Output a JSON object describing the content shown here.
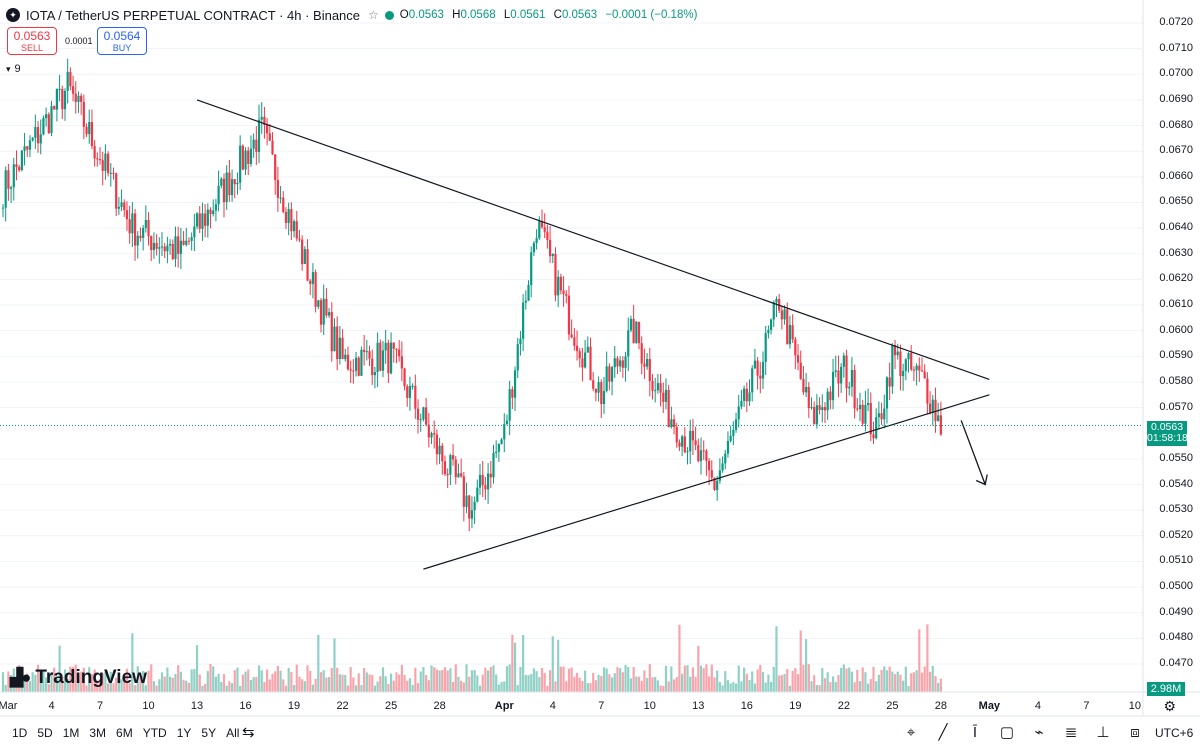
{
  "header": {
    "symbol_icon": "iota-coin-icon",
    "title": "IOTA / TetherUS PERPETUAL CONTRACT · 4h · Binance",
    "ohlc": {
      "o_label": "O",
      "o": "0.0563",
      "h_label": "H",
      "h": "0.0568",
      "l_label": "L",
      "l": "0.0561",
      "c_label": "C",
      "c": "0.0563",
      "change": "−0.0001 (−0.18%)"
    }
  },
  "trade": {
    "sell_price": "0.0563",
    "sell_label": "SELL",
    "spread": "0.0001",
    "buy_price": "0.0564",
    "buy_label": "BUY"
  },
  "indicators": {
    "count": "9"
  },
  "yaxis": {
    "labels": [
      "0.0720",
      "0.0710",
      "0.0700",
      "0.0690",
      "0.0680",
      "0.0670",
      "0.0660",
      "0.0650",
      "0.0640",
      "0.0630",
      "0.0620",
      "0.0610",
      "0.0600",
      "0.0590",
      "0.0580",
      "0.0570",
      "0.0550",
      "0.0540",
      "0.0530",
      "0.0520",
      "0.0510",
      "0.0500",
      "0.0490",
      "0.0480",
      "0.0470"
    ]
  },
  "xaxis": {
    "labels": [
      "Mar",
      "4",
      "7",
      "10",
      "13",
      "16",
      "19",
      "22",
      "25",
      "28",
      "Apr",
      "4",
      "7",
      "10",
      "13",
      "16",
      "19",
      "22",
      "25",
      "28",
      "May",
      "4",
      "7",
      "10"
    ]
  },
  "last_price": {
    "price": "0.0563",
    "countdown": "01:58:18"
  },
  "volume": {
    "last": "2.98M"
  },
  "logo": {
    "text": "TradingView"
  },
  "timeframes": [
    "1D",
    "5D",
    "1M",
    "3M",
    "6M",
    "YTD",
    "1Y",
    "5Y",
    "All"
  ],
  "timezone": "UTC+6",
  "colors": {
    "up": "#089981",
    "down": "#f23645",
    "line": "#131722",
    "grid": "#f0f3fa"
  },
  "chart_data": {
    "type": "candlestick",
    "title": "IOTA / TetherUS PERPETUAL CONTRACT · 4h · Binance",
    "ylim": [
      0.0463,
      0.0722
    ],
    "key_points": [
      {
        "date": "Mar 1",
        "price": 0.0655
      },
      {
        "date": "Mar 5",
        "price": 0.0695
      },
      {
        "date": "Mar 9",
        "price": 0.064
      },
      {
        "date": "Mar 12",
        "price": 0.063
      },
      {
        "date": "Mar 17",
        "price": 0.0678
      },
      {
        "date": "Mar 20",
        "price": 0.062
      },
      {
        "date": "Mar 22",
        "price": 0.0588
      },
      {
        "date": "Mar 25",
        "price": 0.059
      },
      {
        "date": "Mar 28",
        "price": 0.0552
      },
      {
        "date": "Mar 30",
        "price": 0.053
      },
      {
        "date": "Apr 1",
        "price": 0.056
      },
      {
        "date": "Apr 3",
        "price": 0.0642
      },
      {
        "date": "Apr 5",
        "price": 0.0605
      },
      {
        "date": "Apr 7",
        "price": 0.0575
      },
      {
        "date": "Apr 9",
        "price": 0.06
      },
      {
        "date": "Apr 11",
        "price": 0.057
      },
      {
        "date": "Apr 14",
        "price": 0.054
      },
      {
        "date": "Apr 17",
        "price": 0.059
      },
      {
        "date": "Apr 18",
        "price": 0.0612
      },
      {
        "date": "Apr 20",
        "price": 0.0565
      },
      {
        "date": "Apr 22",
        "price": 0.0585
      },
      {
        "date": "Apr 24",
        "price": 0.056
      },
      {
        "date": "Apr 25",
        "price": 0.059
      },
      {
        "date": "Apr 27",
        "price": 0.058
      },
      {
        "date": "Apr 28",
        "price": 0.0563
      }
    ],
    "trendlines": [
      {
        "name": "resistance",
        "from": {
          "date": "Mar 13",
          "price": 0.069
        },
        "to": {
          "date": "May 1",
          "price": 0.0581
        }
      },
      {
        "name": "support",
        "from": {
          "date": "Mar 27",
          "price": 0.0507
        },
        "to": {
          "date": "May 1",
          "price": 0.0575
        }
      }
    ],
    "annotation": {
      "type": "arrow-down",
      "date": "Apr 30",
      "from_price": 0.0565,
      "to_price": 0.054
    },
    "volume_last": "2.98M"
  }
}
